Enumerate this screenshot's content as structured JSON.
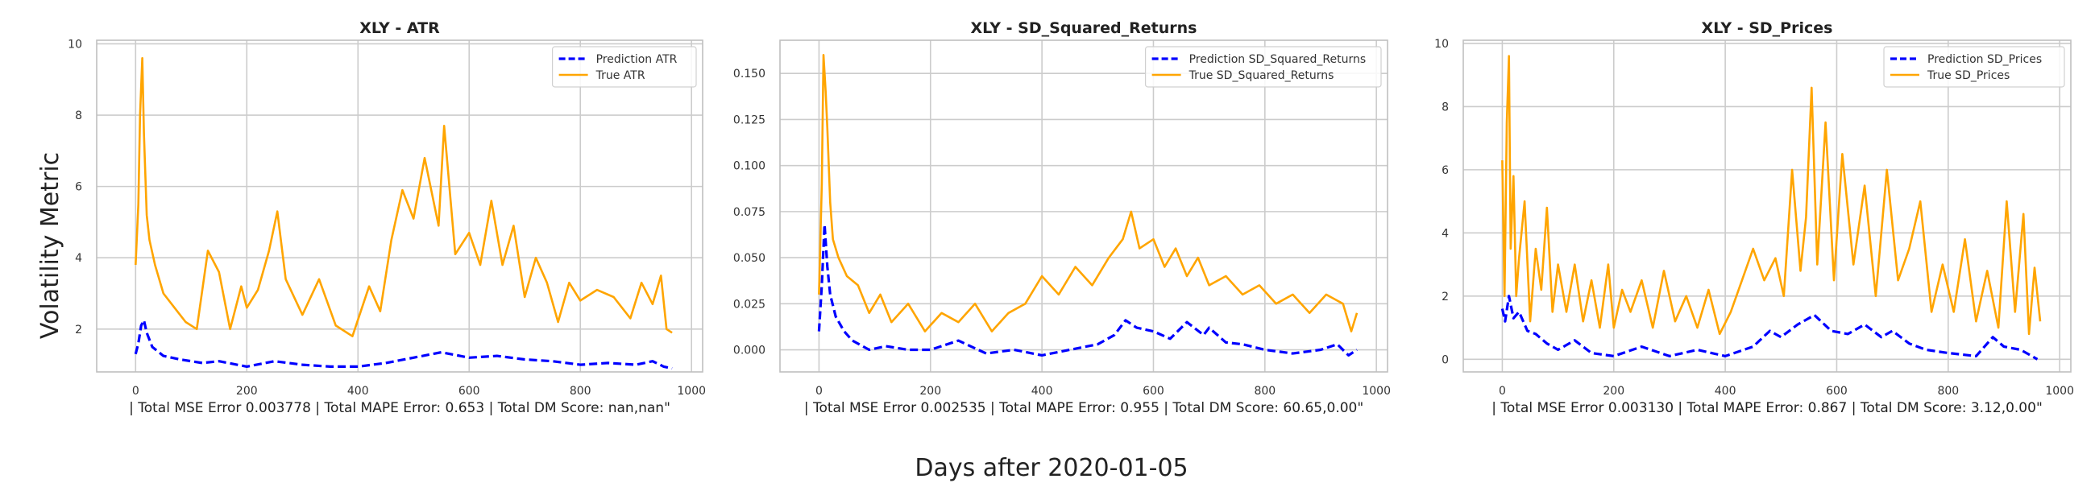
{
  "figure": {
    "ylabel": "Volatility Metric",
    "xlabel": "Days after 2020-01-05"
  },
  "colors": {
    "prediction": "#0000ff",
    "true": "#ffa500",
    "grid": "#cccccc",
    "frame": "#bfbfbf"
  },
  "chart_data": [
    {
      "type": "line",
      "title": "XLY - ATR",
      "xlabel": "| Total MSE Error 0.003778 | Total MAPE Error: 0.653 | Total DM Score: nan,nan\"",
      "xlim": [
        -70,
        1020
      ],
      "ylim": [
        0.8,
        10.1
      ],
      "xticks": [
        0,
        200,
        400,
        600,
        800,
        1000
      ],
      "yticks": [
        2,
        4,
        6,
        8,
        10
      ],
      "ytick_labels": [
        "2",
        "4",
        "6",
        "8",
        "10"
      ],
      "grid": true,
      "legend": "top-right",
      "series": [
        {
          "name": "Prediction ATR",
          "style": "dashed",
          "color": "#0000ff",
          "x": [
            0,
            5,
            10,
            15,
            20,
            30,
            50,
            80,
            120,
            150,
            200,
            250,
            300,
            350,
            400,
            450,
            500,
            550,
            600,
            650,
            700,
            750,
            800,
            850,
            900,
            930,
            950,
            965
          ],
          "y": [
            1.3,
            1.6,
            2.1,
            2.25,
            1.9,
            1.5,
            1.25,
            1.15,
            1.05,
            1.1,
            0.95,
            1.1,
            1.0,
            0.95,
            0.95,
            1.05,
            1.2,
            1.35,
            1.2,
            1.25,
            1.15,
            1.1,
            1.0,
            1.05,
            1.0,
            1.1,
            0.95,
            0.9
          ]
        },
        {
          "name": "True ATR",
          "style": "solid",
          "color": "#ffa500",
          "x": [
            0,
            5,
            8,
            12,
            15,
            20,
            25,
            35,
            50,
            70,
            90,
            110,
            130,
            150,
            170,
            190,
            200,
            220,
            240,
            255,
            270,
            300,
            330,
            360,
            390,
            420,
            440,
            460,
            480,
            500,
            520,
            545,
            555,
            575,
            600,
            620,
            640,
            660,
            680,
            700,
            720,
            740,
            760,
            780,
            800,
            830,
            860,
            890,
            910,
            930,
            945,
            955,
            965
          ],
          "y": [
            3.8,
            5.5,
            8.0,
            9.6,
            7.5,
            5.2,
            4.5,
            3.8,
            3.0,
            2.6,
            2.2,
            2.0,
            4.2,
            3.6,
            2.0,
            3.2,
            2.6,
            3.1,
            4.2,
            5.3,
            3.4,
            2.4,
            3.4,
            2.1,
            1.8,
            3.2,
            2.5,
            4.5,
            5.9,
            5.1,
            6.8,
            4.9,
            7.7,
            4.1,
            4.7,
            3.8,
            5.6,
            3.8,
            4.9,
            2.9,
            4.0,
            3.3,
            2.2,
            3.3,
            2.8,
            3.1,
            2.9,
            2.3,
            3.3,
            2.7,
            3.5,
            2.0,
            1.9
          ]
        }
      ]
    },
    {
      "type": "line",
      "title": "XLY - SD_Squared_Returns",
      "xlabel": "| Total MSE Error 0.002535 | Total MAPE Error: 0.955 | Total DM Score: 60.65,0.00\"",
      "xlim": [
        -70,
        1020
      ],
      "ylim": [
        -0.012,
        0.168
      ],
      "xticks": [
        0,
        200,
        400,
        600,
        800,
        1000
      ],
      "yticks": [
        0,
        0.025,
        0.05,
        0.075,
        0.1,
        0.125,
        0.15
      ],
      "ytick_labels": [
        "0.000",
        "0.025",
        "0.050",
        "0.075",
        "0.100",
        "0.125",
        "0.150"
      ],
      "grid": true,
      "legend": "top-right",
      "series": [
        {
          "name": "Prediction SD_Squared_Returns",
          "style": "dashed",
          "color": "#0000ff",
          "x": [
            0,
            5,
            10,
            15,
            20,
            30,
            45,
            60,
            90,
            120,
            160,
            200,
            250,
            300,
            350,
            400,
            450,
            500,
            530,
            550,
            570,
            600,
            630,
            660,
            690,
            700,
            730,
            760,
            800,
            850,
            900,
            930,
            950,
            965
          ],
          "y": [
            0.01,
            0.035,
            0.068,
            0.045,
            0.03,
            0.018,
            0.01,
            0.005,
            0.0,
            0.002,
            0.0,
            0.0,
            0.005,
            -0.002,
            0.0,
            -0.003,
            0.0,
            0.003,
            0.008,
            0.016,
            0.012,
            0.01,
            0.006,
            0.015,
            0.008,
            0.012,
            0.004,
            0.003,
            0.0,
            -0.002,
            0.0,
            0.003,
            -0.003,
            0.0
          ]
        },
        {
          "name": "True SD_Squared_Returns",
          "style": "solid",
          "color": "#ffa500",
          "x": [
            0,
            5,
            8,
            12,
            15,
            20,
            25,
            35,
            50,
            70,
            90,
            110,
            130,
            160,
            190,
            220,
            250,
            280,
            310,
            340,
            370,
            400,
            430,
            460,
            490,
            520,
            545,
            560,
            575,
            600,
            620,
            640,
            660,
            680,
            700,
            730,
            760,
            790,
            820,
            850,
            880,
            910,
            940,
            955,
            965
          ],
          "y": [
            0.03,
            0.09,
            0.16,
            0.14,
            0.12,
            0.08,
            0.06,
            0.05,
            0.04,
            0.035,
            0.02,
            0.03,
            0.015,
            0.025,
            0.01,
            0.02,
            0.015,
            0.025,
            0.01,
            0.02,
            0.025,
            0.04,
            0.03,
            0.045,
            0.035,
            0.05,
            0.06,
            0.075,
            0.055,
            0.06,
            0.045,
            0.055,
            0.04,
            0.05,
            0.035,
            0.04,
            0.03,
            0.035,
            0.025,
            0.03,
            0.02,
            0.03,
            0.025,
            0.01,
            0.02
          ]
        }
      ]
    },
    {
      "type": "line",
      "title": "XLY - SD_Prices",
      "xlabel": "| Total MSE Error 0.003130 | Total MAPE Error: 0.867 | Total DM Score: 3.12,0.00\"",
      "xlim": [
        -70,
        1020
      ],
      "ylim": [
        -0.4,
        10.1
      ],
      "xticks": [
        0,
        200,
        400,
        600,
        800,
        1000
      ],
      "yticks": [
        0,
        2,
        4,
        6,
        8,
        10
      ],
      "ytick_labels": [
        "0",
        "2",
        "4",
        "6",
        "8",
        "10"
      ],
      "grid": true,
      "legend": "top-right",
      "series": [
        {
          "name": "Prediction SD_Prices",
          "style": "dashed",
          "color": "#0000ff",
          "x": [
            0,
            5,
            12,
            20,
            30,
            45,
            60,
            80,
            100,
            130,
            160,
            200,
            250,
            300,
            350,
            400,
            450,
            480,
            500,
            530,
            560,
            590,
            620,
            650,
            680,
            700,
            730,
            760,
            800,
            850,
            880,
            900,
            930,
            960
          ],
          "y": [
            1.6,
            1.2,
            2.0,
            1.3,
            1.5,
            0.9,
            0.8,
            0.5,
            0.3,
            0.6,
            0.2,
            0.1,
            0.4,
            0.1,
            0.3,
            0.1,
            0.4,
            0.9,
            0.7,
            1.1,
            1.4,
            0.9,
            0.8,
            1.1,
            0.7,
            0.9,
            0.5,
            0.3,
            0.2,
            0.1,
            0.7,
            0.4,
            0.3,
            0.0
          ]
        },
        {
          "name": "True SD_Prices",
          "style": "solid",
          "color": "#ffa500",
          "x": [
            0,
            4,
            8,
            12,
            15,
            20,
            25,
            30,
            40,
            50,
            60,
            70,
            80,
            90,
            100,
            115,
            130,
            145,
            160,
            175,
            190,
            200,
            215,
            230,
            250,
            270,
            290,
            310,
            330,
            350,
            370,
            390,
            410,
            430,
            450,
            470,
            490,
            505,
            520,
            535,
            545,
            555,
            565,
            580,
            595,
            610,
            630,
            650,
            670,
            690,
            710,
            730,
            750,
            770,
            790,
            810,
            830,
            850,
            870,
            890,
            905,
            920,
            935,
            945,
            955,
            965
          ],
          "y": [
            6.3,
            2.0,
            7.5,
            9.6,
            3.5,
            5.8,
            2.0,
            3.2,
            5.0,
            1.2,
            3.5,
            2.2,
            4.8,
            1.5,
            3.0,
            1.5,
            3.0,
            1.2,
            2.5,
            1.0,
            3.0,
            1.0,
            2.2,
            1.5,
            2.5,
            1.0,
            2.8,
            1.2,
            2.0,
            1.0,
            2.2,
            0.8,
            1.5,
            2.5,
            3.5,
            2.5,
            3.2,
            2.0,
            6.0,
            2.8,
            4.5,
            8.6,
            3.0,
            7.5,
            2.5,
            6.5,
            3.0,
            5.5,
            2.0,
            6.0,
            2.5,
            3.5,
            5.0,
            1.5,
            3.0,
            1.5,
            3.8,
            1.2,
            2.8,
            1.0,
            5.0,
            1.5,
            4.6,
            0.8,
            2.9,
            1.2
          ]
        }
      ]
    }
  ]
}
